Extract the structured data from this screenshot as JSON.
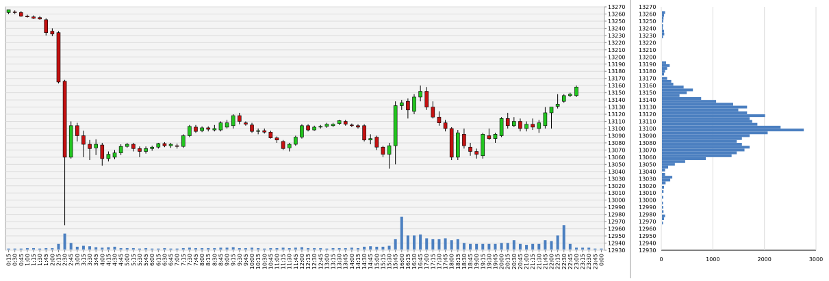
{
  "chart_data": [
    {
      "type": "candlestick",
      "y_axis": {
        "min": 12930,
        "max": 13270,
        "step": 10,
        "ticks": [
          13270,
          13260,
          13250,
          13240,
          13230,
          13220,
          13210,
          13200,
          13190,
          13180,
          13170,
          13160,
          13150,
          13140,
          13130,
          13120,
          13110,
          13100,
          13090,
          13080,
          13070,
          13060,
          13050,
          13040,
          13030,
          13020,
          13010,
          13000,
          12990,
          12980,
          12970,
          12960,
          12950,
          12940,
          12930
        ]
      },
      "x_axis": {
        "labels": [
          "0:15",
          "0:30",
          "0:45",
          "1:00",
          "1:15",
          "1:30",
          "1:45",
          "2:00",
          "2:15",
          "2:30",
          "2:45",
          "3:00",
          "3:15",
          "3:30",
          "3:45",
          "4:00",
          "4:15",
          "4:30",
          "4:45",
          "5:00",
          "5:15",
          "5:30",
          "5:45",
          "6:00",
          "6:15",
          "6:30",
          "6:45",
          "7:00",
          "7:15",
          "7:30",
          "7:45",
          "8:00",
          "8:15",
          "8:30",
          "8:45",
          "9:00",
          "9:15",
          "9:30",
          "9:45",
          "10:00",
          "10:15",
          "10:30",
          "10:45",
          "11:00",
          "11:15",
          "11:30",
          "11:45",
          "12:00",
          "12:15",
          "12:30",
          "12:45",
          "13:00",
          "13:15",
          "13:30",
          "13:45",
          "14:00",
          "14:15",
          "14:30",
          "14:45",
          "15:00",
          "15:15",
          "15:30",
          "15:45",
          "16:00",
          "16:15",
          "16:30",
          "16:45",
          "17:00",
          "17:15",
          "17:30",
          "17:45",
          "18:00",
          "18:15",
          "18:30",
          "18:45",
          "19:00",
          "19:15",
          "19:30",
          "19:45",
          "20:00",
          "20:15",
          "20:30",
          "20:45",
          "21:00",
          "21:15",
          "21:30",
          "21:45",
          "22:00",
          "22:15",
          "22:30",
          "22:45",
          "23:00",
          "23:15",
          "23:30",
          "23:45",
          "0:00"
        ]
      },
      "colors": {
        "up": "#22c51f",
        "down": "#c41111",
        "wick": "#000000",
        "volume": "#4b7fc0",
        "grid": "#dcdcdc",
        "plot_bg": "#f4f4f4"
      },
      "candles": [
        {
          "o": 13262,
          "h": 13266,
          "l": 13260,
          "c": 13266
        },
        {
          "o": 13263,
          "h": 13265,
          "l": 13260,
          "c": 13262
        },
        {
          "o": 13262,
          "h": 13264,
          "l": 13256,
          "c": 13257
        },
        {
          "o": 13257,
          "h": 13259,
          "l": 13255,
          "c": 13256
        },
        {
          "o": 13256,
          "h": 13258,
          "l": 13253,
          "c": 13254
        },
        {
          "o": 13255,
          "h": 13257,
          "l": 13252,
          "c": 13253
        },
        {
          "o": 13252,
          "h": 13254,
          "l": 13230,
          "c": 13234
        },
        {
          "o": 13236,
          "h": 13240,
          "l": 13229,
          "c": 13232
        },
        {
          "o": 13234,
          "h": 13236,
          "l": 13163,
          "c": 13165
        },
        {
          "o": 13166,
          "h": 13168,
          "l": 12965,
          "c": 13060
        },
        {
          "o": 13060,
          "h": 13110,
          "l": 13058,
          "c": 13104
        },
        {
          "o": 13104,
          "h": 13108,
          "l": 13082,
          "c": 13090
        },
        {
          "o": 13090,
          "h": 13097,
          "l": 13060,
          "c": 13078
        },
        {
          "o": 13078,
          "h": 13084,
          "l": 13056,
          "c": 13072
        },
        {
          "o": 13073,
          "h": 13085,
          "l": 13063,
          "c": 13078
        },
        {
          "o": 13077,
          "h": 13080,
          "l": 13048,
          "c": 13058
        },
        {
          "o": 13058,
          "h": 13068,
          "l": 13054,
          "c": 13064
        },
        {
          "o": 13060,
          "h": 13070,
          "l": 13057,
          "c": 13066
        },
        {
          "o": 13066,
          "h": 13078,
          "l": 13063,
          "c": 13075
        },
        {
          "o": 13075,
          "h": 13080,
          "l": 13073,
          "c": 13078
        },
        {
          "o": 13078,
          "h": 13080,
          "l": 13068,
          "c": 13072
        },
        {
          "o": 13072,
          "h": 13075,
          "l": 13060,
          "c": 13068
        },
        {
          "o": 13068,
          "h": 13075,
          "l": 13065,
          "c": 13072
        },
        {
          "o": 13072,
          "h": 13076,
          "l": 13069,
          "c": 13074
        },
        {
          "o": 13074,
          "h": 13080,
          "l": 13072,
          "c": 13079
        },
        {
          "o": 13079,
          "h": 13081,
          "l": 13074,
          "c": 13076
        },
        {
          "o": 13076,
          "h": 13080,
          "l": 13073,
          "c": 13078
        },
        {
          "o": 13076,
          "h": 13079,
          "l": 13072,
          "c": 13075
        },
        {
          "o": 13075,
          "h": 13092,
          "l": 13073,
          "c": 13090
        },
        {
          "o": 13090,
          "h": 13105,
          "l": 13088,
          "c": 13103
        },
        {
          "o": 13102,
          "h": 13105,
          "l": 13094,
          "c": 13096
        },
        {
          "o": 13097,
          "h": 13103,
          "l": 13095,
          "c": 13101
        },
        {
          "o": 13101,
          "h": 13103,
          "l": 13096,
          "c": 13099
        },
        {
          "o": 13098,
          "h": 13105,
          "l": 13096,
          "c": 13100
        },
        {
          "o": 13098,
          "h": 13110,
          "l": 13096,
          "c": 13108
        },
        {
          "o": 13102,
          "h": 13112,
          "l": 13100,
          "c": 13108
        },
        {
          "o": 13104,
          "h": 13120,
          "l": 13100,
          "c": 13118
        },
        {
          "o": 13118,
          "h": 13122,
          "l": 13106,
          "c": 13110
        },
        {
          "o": 13108,
          "h": 13110,
          "l": 13104,
          "c": 13106
        },
        {
          "o": 13105,
          "h": 13108,
          "l": 13094,
          "c": 13096
        },
        {
          "o": 13096,
          "h": 13100,
          "l": 13092,
          "c": 13097
        },
        {
          "o": 13097,
          "h": 13100,
          "l": 13093,
          "c": 13095
        },
        {
          "o": 13095,
          "h": 13097,
          "l": 13086,
          "c": 13087
        },
        {
          "o": 13087,
          "h": 13089,
          "l": 13080,
          "c": 13084
        },
        {
          "o": 13082,
          "h": 13084,
          "l": 13070,
          "c": 13072
        },
        {
          "o": 13073,
          "h": 13080,
          "l": 13068,
          "c": 13078
        },
        {
          "o": 13078,
          "h": 13090,
          "l": 13076,
          "c": 13088
        },
        {
          "o": 13088,
          "h": 13106,
          "l": 13086,
          "c": 13104
        },
        {
          "o": 13104,
          "h": 13106,
          "l": 13096,
          "c": 13098
        },
        {
          "o": 13098,
          "h": 13104,
          "l": 13097,
          "c": 13102
        },
        {
          "o": 13102,
          "h": 13105,
          "l": 13100,
          "c": 13103
        },
        {
          "o": 13103,
          "h": 13108,
          "l": 13101,
          "c": 13106
        },
        {
          "o": 13104,
          "h": 13108,
          "l": 13102,
          "c": 13106
        },
        {
          "o": 13107,
          "h": 13112,
          "l": 13105,
          "c": 13111
        },
        {
          "o": 13110,
          "h": 13112,
          "l": 13104,
          "c": 13106
        },
        {
          "o": 13105,
          "h": 13107,
          "l": 13102,
          "c": 13104
        },
        {
          "o": 13104,
          "h": 13106,
          "l": 13100,
          "c": 13102
        },
        {
          "o": 13104,
          "h": 13106,
          "l": 13082,
          "c": 13084
        },
        {
          "o": 13084,
          "h": 13092,
          "l": 13078,
          "c": 13086
        },
        {
          "o": 13088,
          "h": 13090,
          "l": 13070,
          "c": 13074
        },
        {
          "o": 13074,
          "h": 13076,
          "l": 13060,
          "c": 13064
        },
        {
          "o": 13064,
          "h": 13080,
          "l": 13044,
          "c": 13076
        },
        {
          "o": 13076,
          "h": 13138,
          "l": 13050,
          "c": 13132
        },
        {
          "o": 13132,
          "h": 13140,
          "l": 13126,
          "c": 13136
        },
        {
          "o": 13138,
          "h": 13142,
          "l": 13114,
          "c": 13126
        },
        {
          "o": 13124,
          "h": 13148,
          "l": 13120,
          "c": 13144
        },
        {
          "o": 13144,
          "h": 13160,
          "l": 13138,
          "c": 13152
        },
        {
          "o": 13152,
          "h": 13158,
          "l": 13126,
          "c": 13130
        },
        {
          "o": 13130,
          "h": 13138,
          "l": 13114,
          "c": 13116
        },
        {
          "o": 13116,
          "h": 13124,
          "l": 13104,
          "c": 13108
        },
        {
          "o": 13108,
          "h": 13112,
          "l": 13096,
          "c": 13100
        },
        {
          "o": 13100,
          "h": 13102,
          "l": 13056,
          "c": 13060
        },
        {
          "o": 13060,
          "h": 13098,
          "l": 13056,
          "c": 13094
        },
        {
          "o": 13092,
          "h": 13100,
          "l": 13072,
          "c": 13076
        },
        {
          "o": 13074,
          "h": 13080,
          "l": 13062,
          "c": 13068
        },
        {
          "o": 13068,
          "h": 13072,
          "l": 13058,
          "c": 13064
        },
        {
          "o": 13062,
          "h": 13094,
          "l": 13058,
          "c": 13092
        },
        {
          "o": 13090,
          "h": 13100,
          "l": 13084,
          "c": 13086
        },
        {
          "o": 13086,
          "h": 13094,
          "l": 13080,
          "c": 13092
        },
        {
          "o": 13090,
          "h": 13116,
          "l": 13088,
          "c": 13114
        },
        {
          "o": 13114,
          "h": 13122,
          "l": 13100,
          "c": 13104
        },
        {
          "o": 13104,
          "h": 13116,
          "l": 13102,
          "c": 13110
        },
        {
          "o": 13110,
          "h": 13114,
          "l": 13096,
          "c": 13100
        },
        {
          "o": 13100,
          "h": 13110,
          "l": 13096,
          "c": 13106
        },
        {
          "o": 13106,
          "h": 13114,
          "l": 13098,
          "c": 13102
        },
        {
          "o": 13100,
          "h": 13112,
          "l": 13094,
          "c": 13108
        },
        {
          "o": 13104,
          "h": 13130,
          "l": 13100,
          "c": 13122
        },
        {
          "o": 13122,
          "h": 13130,
          "l": 13100,
          "c": 13130
        },
        {
          "o": 13131,
          "h": 13148,
          "l": 13128,
          "c": 13134
        },
        {
          "o": 13138,
          "h": 13148,
          "l": 13136,
          "c": 13146
        },
        {
          "o": 13146,
          "h": 13150,
          "l": 13144,
          "c": 13148
        },
        {
          "o": 13146,
          "h": 13160,
          "l": 13144,
          "c": 13158
        }
      ],
      "volume": [
        2,
        2,
        2,
        3,
        3,
        2,
        3,
        3,
        12,
        34,
        14,
        6,
        8,
        7,
        5,
        4,
        5,
        6,
        3,
        3,
        3,
        2,
        3,
        2,
        2,
        3,
        2,
        2,
        3,
        4,
        3,
        3,
        3,
        3,
        4,
        4,
        5,
        3,
        3,
        4,
        3,
        2,
        3,
        3,
        4,
        3,
        4,
        5,
        3,
        3,
        3,
        2,
        3,
        3,
        3,
        4,
        3,
        6,
        7,
        6,
        6,
        8,
        22,
        70,
        30,
        30,
        32,
        24,
        22,
        22,
        24,
        20,
        22,
        14,
        12,
        12,
        12,
        12,
        12,
        14,
        14,
        20,
        12,
        10,
        12,
        12,
        20,
        18,
        30,
        52,
        12,
        4,
        4,
        4,
        2,
        2
      ],
      "volume_max": 80
    },
    {
      "type": "bar",
      "orientation": "horizontal",
      "x_axis": {
        "min": 0,
        "max": 3000,
        "ticks": [
          0,
          1000,
          2000,
          3000
        ]
      },
      "y_axis": {
        "min": 12930,
        "max": 13270,
        "step": 10,
        "ticks": [
          13270,
          13260,
          13250,
          13240,
          13230,
          13220,
          13210,
          13200,
          13190,
          13180,
          13170,
          13160,
          13150,
          13140,
          13130,
          13120,
          13110,
          13100,
          13090,
          13080,
          13070,
          13060,
          13050,
          13040,
          13030,
          13020,
          13010,
          13000,
          12990,
          12980,
          12970,
          12960,
          12950,
          12940,
          12930
        ]
      },
      "color": "#4b7fc0",
      "profile": [
        {
          "p": 13262,
          "v": 60
        },
        {
          "p": 13258,
          "v": 40
        },
        {
          "p": 13254,
          "v": 30
        },
        {
          "p": 13250,
          "v": 25
        },
        {
          "p": 13244,
          "v": 20
        },
        {
          "p": 13240,
          "v": 15
        },
        {
          "p": 13236,
          "v": 40
        },
        {
          "p": 13232,
          "v": 45
        },
        {
          "p": 13228,
          "v": 20
        },
        {
          "p": 13192,
          "v": 80
        },
        {
          "p": 13188,
          "v": 150
        },
        {
          "p": 13184,
          "v": 100
        },
        {
          "p": 13180,
          "v": 60
        },
        {
          "p": 13176,
          "v": 40
        },
        {
          "p": 13170,
          "v": 100
        },
        {
          "p": 13166,
          "v": 180
        },
        {
          "p": 13162,
          "v": 220
        },
        {
          "p": 13158,
          "v": 420
        },
        {
          "p": 13154,
          "v": 600
        },
        {
          "p": 13150,
          "v": 480
        },
        {
          "p": 13146,
          "v": 340
        },
        {
          "p": 13142,
          "v": 760
        },
        {
          "p": 13138,
          "v": 1050
        },
        {
          "p": 13134,
          "v": 1380
        },
        {
          "p": 13130,
          "v": 1650
        },
        {
          "p": 13126,
          "v": 1480
        },
        {
          "p": 13122,
          "v": 1650
        },
        {
          "p": 13118,
          "v": 2000
        },
        {
          "p": 13114,
          "v": 1700
        },
        {
          "p": 13110,
          "v": 1750
        },
        {
          "p": 13106,
          "v": 1850
        },
        {
          "p": 13102,
          "v": 2300
        },
        {
          "p": 13098,
          "v": 2750
        },
        {
          "p": 13094,
          "v": 2050
        },
        {
          "p": 13090,
          "v": 1700
        },
        {
          "p": 13086,
          "v": 1550
        },
        {
          "p": 13082,
          "v": 1450
        },
        {
          "p": 13078,
          "v": 1550
        },
        {
          "p": 13074,
          "v": 1700
        },
        {
          "p": 13070,
          "v": 1600
        },
        {
          "p": 13066,
          "v": 1450
        },
        {
          "p": 13062,
          "v": 1350
        },
        {
          "p": 13058,
          "v": 850
        },
        {
          "p": 13054,
          "v": 450
        },
        {
          "p": 13050,
          "v": 250
        },
        {
          "p": 13046,
          "v": 120
        },
        {
          "p": 13042,
          "v": 60
        },
        {
          "p": 13036,
          "v": 60
        },
        {
          "p": 13032,
          "v": 200
        },
        {
          "p": 13028,
          "v": 160
        },
        {
          "p": 13024,
          "v": 70
        },
        {
          "p": 13018,
          "v": 40
        },
        {
          "p": 13012,
          "v": 30
        },
        {
          "p": 13004,
          "v": 25
        },
        {
          "p": 12996,
          "v": 20
        },
        {
          "p": 12990,
          "v": 25
        },
        {
          "p": 12984,
          "v": 30
        },
        {
          "p": 12978,
          "v": 60
        },
        {
          "p": 12974,
          "v": 40
        },
        {
          "p": 12968,
          "v": 20
        }
      ]
    }
  ]
}
